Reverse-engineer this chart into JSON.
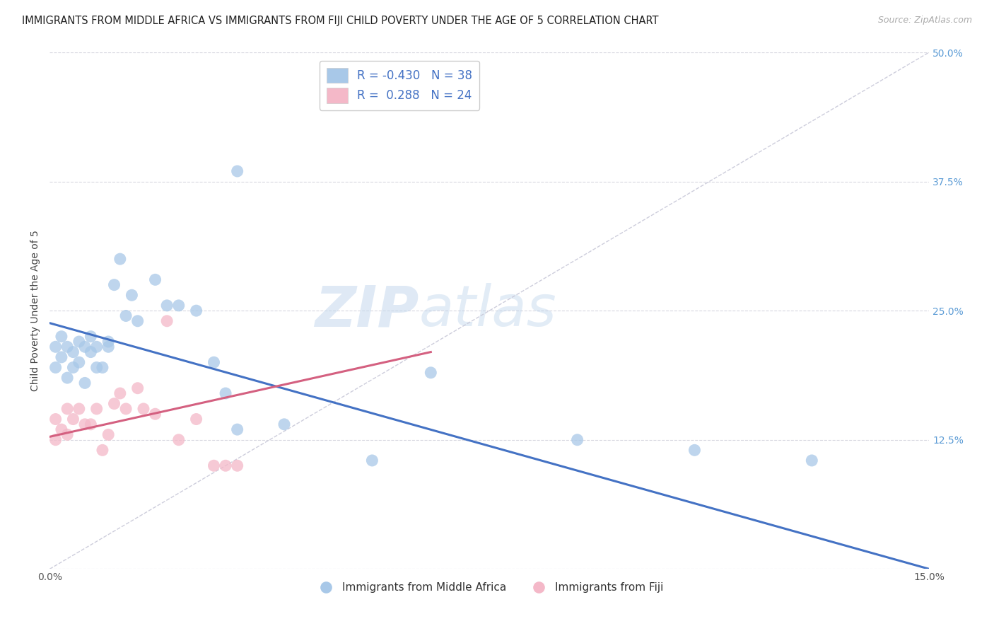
{
  "title": "IMMIGRANTS FROM MIDDLE AFRICA VS IMMIGRANTS FROM FIJI CHILD POVERTY UNDER THE AGE OF 5 CORRELATION CHART",
  "source": "Source: ZipAtlas.com",
  "ylabel": "Child Poverty Under the Age of 5",
  "xlim": [
    0.0,
    0.15
  ],
  "ylim": [
    0.0,
    0.5
  ],
  "xticks": [
    0.0,
    0.025,
    0.05,
    0.075,
    0.1,
    0.125,
    0.15
  ],
  "yticks_right": [
    0.0,
    0.125,
    0.25,
    0.375,
    0.5
  ],
  "yticklabels_right": [
    "",
    "12.5%",
    "25.0%",
    "37.5%",
    "50.0%"
  ],
  "legend_blue_label": "Immigrants from Middle Africa",
  "legend_pink_label": "Immigrants from Fiji",
  "R_blue": -0.43,
  "N_blue": 38,
  "R_pink": 0.288,
  "N_pink": 24,
  "blue_color": "#a8c8e8",
  "pink_color": "#f4b8c8",
  "blue_line_color": "#4472c4",
  "pink_line_color": "#d46080",
  "dashed_line_color": "#c8c8d8",
  "grid_color": "#d8d8e0",
  "watermark_zip": "ZIP",
  "watermark_atlas": "atlas",
  "blue_scatter_x": [
    0.001,
    0.001,
    0.002,
    0.002,
    0.003,
    0.003,
    0.004,
    0.004,
    0.005,
    0.005,
    0.006,
    0.006,
    0.007,
    0.007,
    0.008,
    0.008,
    0.009,
    0.01,
    0.01,
    0.011,
    0.012,
    0.013,
    0.014,
    0.015,
    0.018,
    0.02,
    0.022,
    0.025,
    0.028,
    0.03,
    0.032,
    0.04,
    0.055,
    0.065,
    0.09,
    0.11,
    0.13,
    0.032
  ],
  "blue_scatter_y": [
    0.215,
    0.195,
    0.225,
    0.205,
    0.215,
    0.185,
    0.21,
    0.195,
    0.22,
    0.2,
    0.215,
    0.18,
    0.21,
    0.225,
    0.215,
    0.195,
    0.195,
    0.215,
    0.22,
    0.275,
    0.3,
    0.245,
    0.265,
    0.24,
    0.28,
    0.255,
    0.255,
    0.25,
    0.2,
    0.17,
    0.135,
    0.14,
    0.105,
    0.19,
    0.125,
    0.115,
    0.105,
    0.385
  ],
  "pink_scatter_x": [
    0.001,
    0.001,
    0.002,
    0.003,
    0.003,
    0.004,
    0.005,
    0.006,
    0.007,
    0.008,
    0.009,
    0.01,
    0.011,
    0.012,
    0.013,
    0.015,
    0.016,
    0.018,
    0.02,
    0.022,
    0.025,
    0.028,
    0.03,
    0.032
  ],
  "pink_scatter_y": [
    0.145,
    0.125,
    0.135,
    0.155,
    0.13,
    0.145,
    0.155,
    0.14,
    0.14,
    0.155,
    0.115,
    0.13,
    0.16,
    0.17,
    0.155,
    0.175,
    0.155,
    0.15,
    0.24,
    0.125,
    0.145,
    0.1,
    0.1,
    0.1
  ],
  "blue_line_x0": 0.0,
  "blue_line_y0": 0.238,
  "blue_line_x1": 0.15,
  "blue_line_y1": 0.0,
  "pink_line_x0": 0.0,
  "pink_line_y0": 0.128,
  "pink_line_x1": 0.065,
  "pink_line_y1": 0.21,
  "background_color": "#ffffff",
  "title_fontsize": 10.5,
  "axis_label_fontsize": 10,
  "tick_fontsize": 10
}
